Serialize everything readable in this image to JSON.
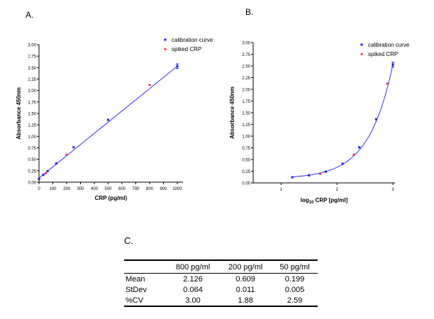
{
  "panels": {
    "a": "A.",
    "b": "B.",
    "c": "C."
  },
  "colors": {
    "calibration": "#1a1aff",
    "spiked": "#ff1a1a",
    "fit": "#3333ff"
  },
  "chart_data": [
    {
      "type": "scatter",
      "xlabel": "CRP (pg/ml)",
      "ylabel": "Absorbance 450nm",
      "xlim": [
        0,
        1000
      ],
      "ylim": [
        0,
        3
      ],
      "xticks": [
        "0",
        "100",
        "200",
        "300",
        "400",
        "500",
        "600",
        "700",
        "800",
        "900",
        "1000"
      ],
      "yticks": [
        "0.00",
        "0.25",
        "0.50",
        "0.75",
        "1.00",
        "1.25",
        "1.50",
        "1.75",
        "2.00",
        "2.25",
        "2.50",
        "2.75",
        "3.00"
      ],
      "legend": "top-right",
      "fit": "linear",
      "series": [
        {
          "name": "calibration curve",
          "marker": "square",
          "x": [
            0,
            31.25,
            62.5,
            125,
            250,
            500,
            1000
          ],
          "y": [
            0.07,
            0.16,
            0.24,
            0.41,
            0.76,
            1.36,
            2.53
          ]
        },
        {
          "name": "spiked CRP",
          "marker": "triangle",
          "x": [
            50,
            200,
            800
          ],
          "y": [
            0.199,
            0.609,
            2.126
          ]
        }
      ]
    },
    {
      "type": "scatter",
      "xlabel": "log10 CRP [pg/ml]",
      "xlabel_main": "log",
      "xlabel_sub": "10",
      "xlabel_rest": " CRP [pg/ml]",
      "ylabel": "Absorbance 450nm",
      "xlim": [
        0.5,
        3.05
      ],
      "ylim": [
        0,
        3
      ],
      "xticks": [
        "1",
        "2",
        "3"
      ],
      "yticks": [
        "0.00",
        "0.25",
        "0.50",
        "0.75",
        "1.00",
        "1.25",
        "1.50",
        "1.75",
        "2.00",
        "2.25",
        "2.50",
        "2.75",
        "3.00"
      ],
      "legend": "top-right",
      "fit": "curve",
      "series": [
        {
          "name": "calibration curve",
          "marker": "square",
          "x": [
            1.2,
            1.5,
            1.8,
            2.1,
            2.4,
            2.7,
            3.0
          ],
          "y": [
            0.12,
            0.16,
            0.24,
            0.41,
            0.76,
            1.36,
            2.53
          ]
        },
        {
          "name": "spiked CRP",
          "marker": "triangle",
          "x": [
            1.7,
            2.3,
            2.9
          ],
          "y": [
            0.199,
            0.609,
            2.126
          ]
        }
      ]
    }
  ],
  "table": {
    "headers": [
      "",
      "800 pg/ml",
      "200 pg/ml",
      "50 pg/ml"
    ],
    "rows": [
      [
        "Mean",
        "2.126",
        "0.609",
        "0.199"
      ],
      [
        "StDev",
        "0.064",
        "0.011",
        "0.005"
      ],
      [
        "%CV",
        "3.00",
        "1.88",
        "2.59"
      ]
    ]
  }
}
